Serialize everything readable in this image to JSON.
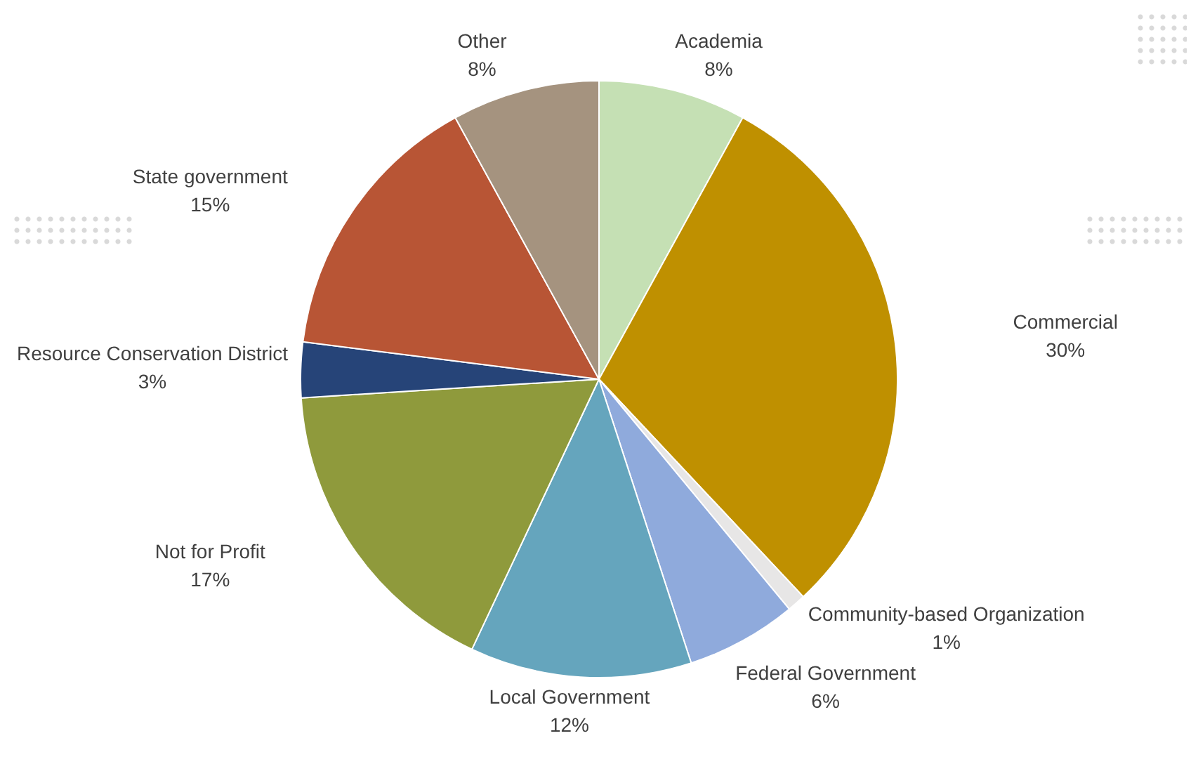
{
  "chart_data": {
    "type": "pie",
    "categories": [
      "Academia",
      "Commercial",
      "Community-based Organization",
      "Federal Government",
      "Local Government",
      "Not for Profit",
      "Resource Conservation District",
      "State government",
      "Other"
    ],
    "values": [
      8,
      30,
      1,
      6,
      12,
      17,
      3,
      15,
      8
    ],
    "value_labels": [
      "8%",
      "30%",
      "1%",
      "6%",
      "12%",
      "17%",
      "3%",
      "15%",
      "8%"
    ],
    "colors": [
      "#c5e0b4",
      "#bf9000",
      "#e7e6e6",
      "#8faadc",
      "#65a5bd",
      "#8f9a3c",
      "#264478",
      "#b85535",
      "#a5937f"
    ],
    "legend": false
  }
}
